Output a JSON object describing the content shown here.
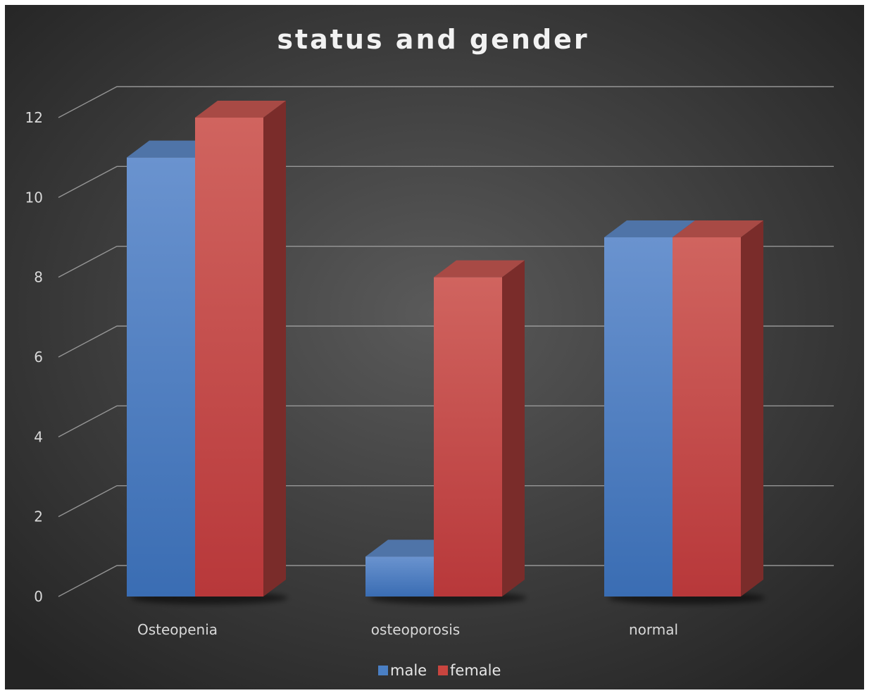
{
  "chart_data": {
    "type": "bar",
    "title": "status and gender",
    "categories": [
      "Osteopenia",
      "osteoporosis",
      "normal"
    ],
    "series": [
      {
        "name": "male",
        "values": [
          11,
          1,
          9
        ]
      },
      {
        "name": "female",
        "values": [
          12,
          8,
          9
        ]
      }
    ],
    "ylim": [
      0,
      12
    ],
    "yticks": [
      0,
      2,
      4,
      6,
      8,
      10,
      12
    ],
    "grid": true,
    "legend": "bottom",
    "colors": {
      "male": "#4a7fc4",
      "female": "#c9453f",
      "background_center": "#5a5a5a",
      "background_edge": "#242424",
      "grid": "#a6a6a6",
      "text": "#d9d9d9"
    }
  }
}
